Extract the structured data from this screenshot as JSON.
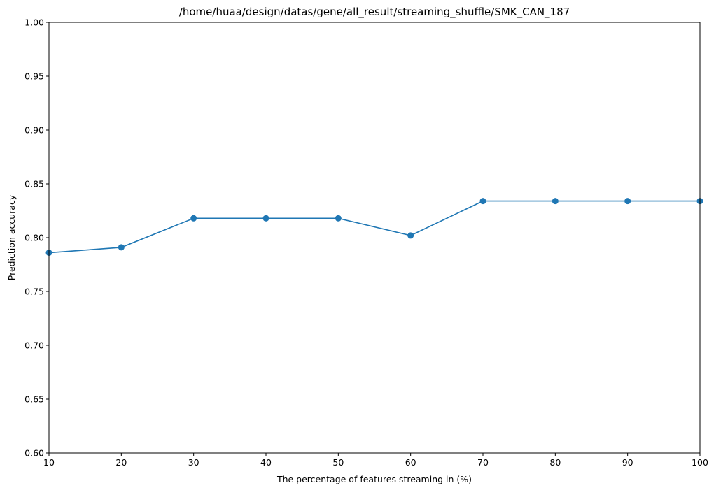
{
  "chart_data": {
    "type": "line",
    "title": "/home/huaa/design/datas/gene/all_result/streaming_shuffle/SMK_CAN_187",
    "xlabel": "The percentage of features streaming in (%)",
    "ylabel": "Prediction accuracy",
    "xlim": [
      10,
      100
    ],
    "ylim": [
      0.6,
      1.0
    ],
    "x_ticks": [
      10,
      20,
      30,
      40,
      50,
      60,
      70,
      80,
      90,
      100
    ],
    "y_ticks": [
      0.6,
      0.65,
      0.7,
      0.75,
      0.8,
      0.85,
      0.9,
      0.95,
      1.0
    ],
    "x_tick_labels": [
      "10",
      "20",
      "30",
      "40",
      "50",
      "60",
      "70",
      "80",
      "90",
      "100"
    ],
    "y_tick_labels": [
      "0.60",
      "0.65",
      "0.70",
      "0.75",
      "0.80",
      "0.85",
      "0.90",
      "0.95",
      "1.00"
    ],
    "grid": false,
    "legend": null,
    "series": [
      {
        "color": "#1f77b4",
        "marker": "circle",
        "x": [
          10,
          20,
          30,
          40,
          50,
          60,
          70,
          80,
          90,
          100
        ],
        "y": [
          0.786,
          0.791,
          0.818,
          0.818,
          0.818,
          0.802,
          0.834,
          0.834,
          0.834,
          0.834
        ]
      }
    ]
  }
}
